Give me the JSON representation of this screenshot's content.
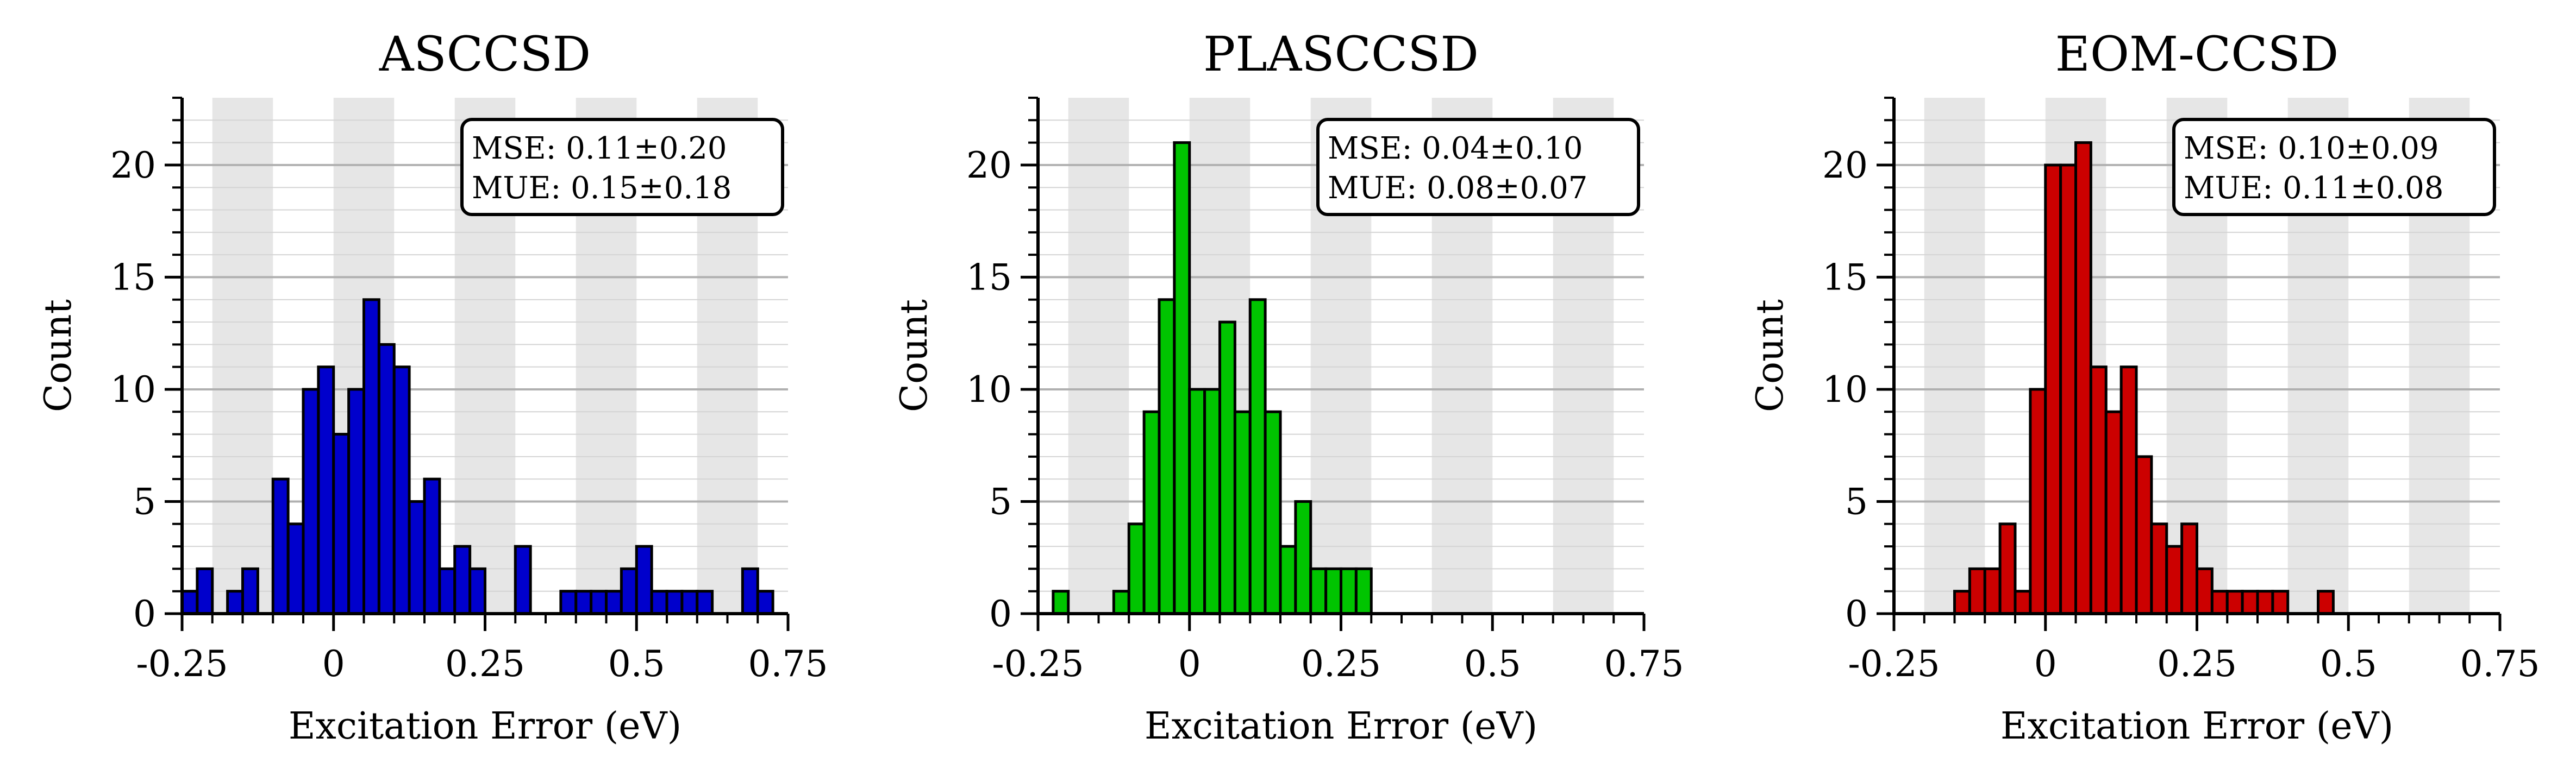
{
  "chart_data": [
    {
      "type": "bar",
      "title": "ASCCSD",
      "xlabel": "Excitation Error (eV)",
      "ylabel": "Count",
      "xlim": [
        -0.25,
        0.75
      ],
      "ylim": [
        0,
        23
      ],
      "bin_width": 0.025,
      "xtick_labels": [
        "-0.25",
        "0",
        "0.25",
        "0.5",
        "0.75"
      ],
      "ytick_labels": [
        "0",
        "5",
        "10",
        "15",
        "20"
      ],
      "color": "#0000cc",
      "stats": {
        "mse": "MSE:  0.11±0.20",
        "mue": "MUE:  0.15±0.18"
      },
      "bins": [
        {
          "x": -0.2375,
          "count": 1
        },
        {
          "x": -0.2125,
          "count": 2
        },
        {
          "x": -0.1625,
          "count": 1
        },
        {
          "x": -0.1375,
          "count": 2
        },
        {
          "x": -0.0875,
          "count": 6
        },
        {
          "x": -0.0625,
          "count": 4
        },
        {
          "x": -0.0375,
          "count": 10
        },
        {
          "x": -0.0125,
          "count": 11
        },
        {
          "x": 0.0125,
          "count": 8
        },
        {
          "x": 0.0375,
          "count": 10
        },
        {
          "x": 0.0625,
          "count": 14
        },
        {
          "x": 0.0875,
          "count": 12
        },
        {
          "x": 0.1125,
          "count": 11
        },
        {
          "x": 0.1375,
          "count": 5
        },
        {
          "x": 0.1625,
          "count": 6
        },
        {
          "x": 0.1875,
          "count": 2
        },
        {
          "x": 0.2125,
          "count": 3
        },
        {
          "x": 0.2375,
          "count": 2
        },
        {
          "x": 0.3125,
          "count": 3
        },
        {
          "x": 0.3875,
          "count": 1
        },
        {
          "x": 0.4125,
          "count": 1
        },
        {
          "x": 0.4375,
          "count": 1
        },
        {
          "x": 0.4625,
          "count": 1
        },
        {
          "x": 0.4875,
          "count": 2
        },
        {
          "x": 0.5125,
          "count": 3
        },
        {
          "x": 0.5375,
          "count": 1
        },
        {
          "x": 0.5625,
          "count": 1
        },
        {
          "x": 0.5875,
          "count": 1
        },
        {
          "x": 0.6125,
          "count": 1
        },
        {
          "x": 0.6875,
          "count": 2
        },
        {
          "x": 0.7125,
          "count": 1
        }
      ]
    },
    {
      "type": "bar",
      "title": "PLASCCSD",
      "xlabel": "Excitation Error (eV)",
      "ylabel": "Count",
      "xlim": [
        -0.25,
        0.75
      ],
      "ylim": [
        0,
        23
      ],
      "bin_width": 0.025,
      "xtick_labels": [
        "-0.25",
        "0",
        "0.25",
        "0.5",
        "0.75"
      ],
      "ytick_labels": [
        "0",
        "5",
        "10",
        "15",
        "20"
      ],
      "color": "#00c400",
      "stats": {
        "mse": "MSE:  0.04±0.10",
        "mue": "MUE:  0.08±0.07"
      },
      "bins": [
        {
          "x": -0.2125,
          "count": 1
        },
        {
          "x": -0.1125,
          "count": 1
        },
        {
          "x": -0.0875,
          "count": 4
        },
        {
          "x": -0.0625,
          "count": 9
        },
        {
          "x": -0.0375,
          "count": 14
        },
        {
          "x": -0.0125,
          "count": 21
        },
        {
          "x": 0.0125,
          "count": 10
        },
        {
          "x": 0.0375,
          "count": 10
        },
        {
          "x": 0.0625,
          "count": 13
        },
        {
          "x": 0.0875,
          "count": 9
        },
        {
          "x": 0.1125,
          "count": 14
        },
        {
          "x": 0.1375,
          "count": 9
        },
        {
          "x": 0.1625,
          "count": 3
        },
        {
          "x": 0.1875,
          "count": 5
        },
        {
          "x": 0.2125,
          "count": 2
        },
        {
          "x": 0.2375,
          "count": 2
        },
        {
          "x": 0.2625,
          "count": 2
        },
        {
          "x": 0.2875,
          "count": 2
        }
      ]
    },
    {
      "type": "bar",
      "title": "EOM-CCSD",
      "xlabel": "Excitation Error (eV)",
      "ylabel": "Count",
      "xlim": [
        -0.25,
        0.75
      ],
      "ylim": [
        0,
        23
      ],
      "bin_width": 0.025,
      "xtick_labels": [
        "-0.25",
        "0",
        "0.25",
        "0.5",
        "0.75"
      ],
      "ytick_labels": [
        "0",
        "5",
        "10",
        "15",
        "20"
      ],
      "color": "#cc0000",
      "stats": {
        "mse": "MSE:  0.10±0.09",
        "mue": "MUE:  0.11±0.08"
      },
      "bins": [
        {
          "x": -0.1375,
          "count": 1
        },
        {
          "x": -0.1125,
          "count": 2
        },
        {
          "x": -0.0875,
          "count": 2
        },
        {
          "x": -0.0625,
          "count": 4
        },
        {
          "x": -0.0375,
          "count": 1
        },
        {
          "x": -0.0125,
          "count": 10
        },
        {
          "x": 0.0125,
          "count": 20
        },
        {
          "x": 0.0375,
          "count": 20
        },
        {
          "x": 0.0625,
          "count": 21
        },
        {
          "x": 0.0875,
          "count": 11
        },
        {
          "x": 0.1125,
          "count": 9
        },
        {
          "x": 0.1375,
          "count": 11
        },
        {
          "x": 0.1625,
          "count": 7
        },
        {
          "x": 0.1875,
          "count": 4
        },
        {
          "x": 0.2125,
          "count": 3
        },
        {
          "x": 0.2375,
          "count": 4
        },
        {
          "x": 0.2625,
          "count": 2
        },
        {
          "x": 0.2875,
          "count": 1
        },
        {
          "x": 0.3125,
          "count": 1
        },
        {
          "x": 0.3375,
          "count": 1
        },
        {
          "x": 0.3625,
          "count": 1
        },
        {
          "x": 0.3875,
          "count": 1
        },
        {
          "x": 0.4625,
          "count": 1
        }
      ]
    }
  ]
}
